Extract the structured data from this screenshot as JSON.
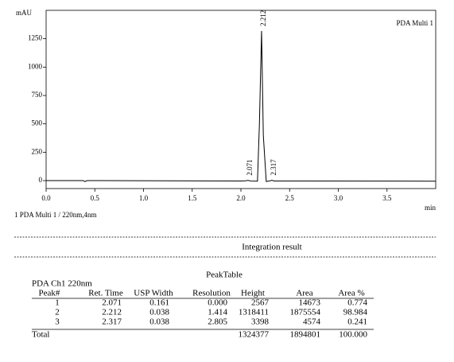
{
  "chart_data": {
    "type": "line",
    "ylabel": "mAU",
    "xlabel": "min",
    "xlim": [
      0,
      4.0
    ],
    "ylim": [
      -70,
      1500
    ],
    "xticks": [
      {
        "value": 0,
        "label": "0.0"
      },
      0.5,
      {
        "value": 1,
        "label": "1.0"
      },
      1.5,
      {
        "value": 2,
        "label": "2.0"
      },
      2.5,
      {
        "value": 3,
        "label": "3.0"
      },
      3.5
    ],
    "yticks": [
      0,
      250,
      500,
      750,
      1000,
      1250
    ],
    "series": [
      {
        "name": "PDA Multi 1",
        "color": "#000000",
        "x": [
          0,
          0.38,
          0.4,
          0.42,
          2.0,
          2.05,
          2.071,
          2.1,
          2.17,
          2.19,
          2.212,
          2.23,
          2.26,
          2.3,
          2.317,
          2.34,
          2.5,
          4.0
        ],
        "values": [
          0,
          0,
          -8,
          0,
          -3,
          -2,
          2.6,
          -3,
          -5,
          500,
          1318,
          400,
          -8,
          -2,
          3.4,
          -3,
          -3,
          -5
        ]
      }
    ],
    "peak_labels": [
      2.071,
      2.212,
      2.317
    ]
  },
  "caption": "1 PDA Multi 1 / 220nm,4nm",
  "section_title": "Integration result",
  "peak_table": {
    "title": "PeakTable",
    "subtitle": "PDA Ch1 220nm",
    "columns": [
      "Peak#",
      "Ret. Time",
      "USP Width",
      "Resolution",
      "Height",
      "Area",
      "Area %"
    ],
    "rows": [
      [
        "1",
        "2.071",
        "0.161",
        "0.000",
        "2567",
        "14673",
        "0.774"
      ],
      [
        "2",
        "2.212",
        "0.038",
        "1.414",
        "1318411",
        "1875554",
        "98.984"
      ],
      [
        "3",
        "2.317",
        "0.038",
        "2.805",
        "3398",
        "4574",
        "0.241"
      ]
    ],
    "total": [
      "Total",
      "1324377",
      "1894801",
      "100.000"
    ]
  }
}
